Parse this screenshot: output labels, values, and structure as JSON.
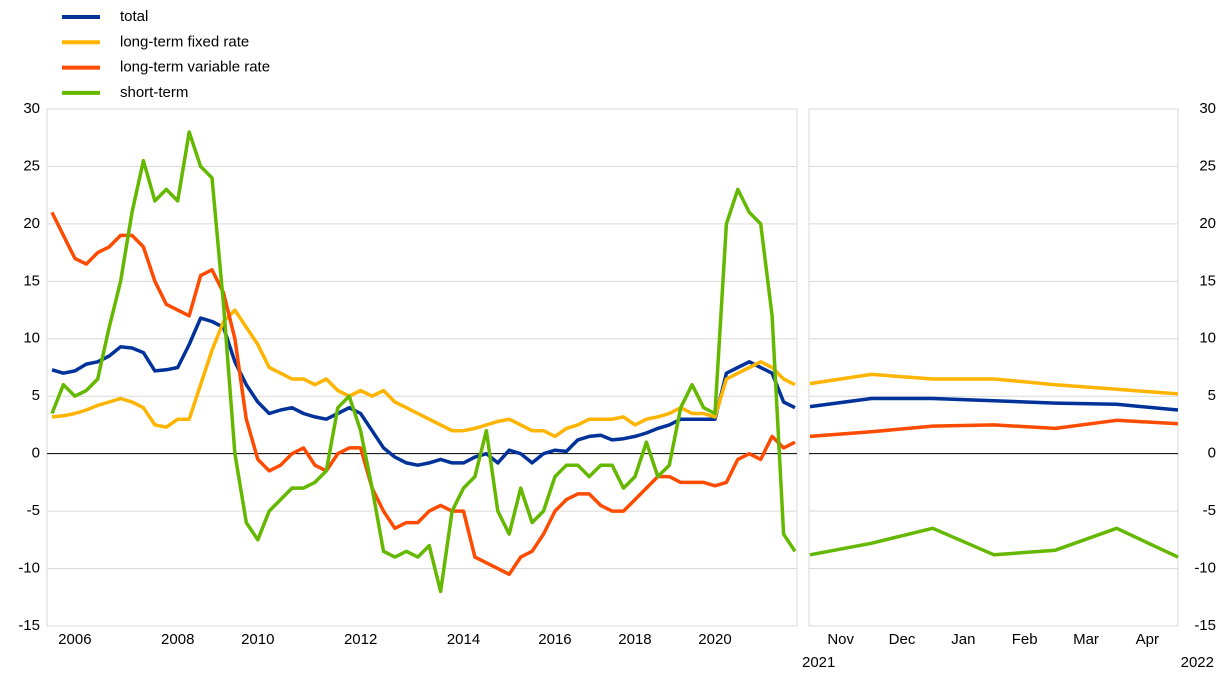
{
  "chart_data": [
    {
      "type": "line",
      "yaxis_position": "left",
      "grid": true,
      "categories": [
        null,
        null,
        "2006",
        null,
        null,
        null,
        null,
        null,
        null,
        null,
        null,
        "2008",
        null,
        null,
        null,
        null,
        null,
        null,
        "2010",
        null,
        null,
        null,
        null,
        null,
        null,
        null,
        null,
        "2012",
        null,
        null,
        null,
        null,
        null,
        null,
        null,
        null,
        "2014",
        null,
        null,
        null,
        null,
        null,
        null,
        null,
        "2016",
        null,
        null,
        null,
        null,
        null,
        null,
        "2018",
        null,
        null,
        null,
        null,
        null,
        null,
        "2020",
        null,
        null,
        null,
        null,
        null,
        null,
        null
      ],
      "ylim": [
        -15,
        30
      ],
      "yticks": [
        -15,
        -10,
        -5,
        0,
        5,
        10,
        15,
        20,
        25,
        30
      ],
      "series": [
        {
          "name": "total",
          "color": "#003299",
          "values": [
            7.3,
            7.0,
            7.2,
            7.8,
            8.0,
            8.5,
            9.3,
            9.2,
            8.8,
            7.2,
            7.3,
            7.5,
            9.5,
            11.8,
            11.5,
            11.0,
            8.0,
            6.0,
            4.5,
            3.5,
            3.8,
            4.0,
            3.5,
            3.2,
            3.0,
            3.5,
            4.0,
            3.5,
            2.0,
            0.5,
            -0.3,
            -0.8,
            -1.0,
            -0.8,
            -0.5,
            -0.8,
            -0.8,
            -0.3,
            0.0,
            -0.8,
            0.3,
            0.0,
            -0.8,
            0.0,
            0.3,
            0.2,
            1.2,
            1.5,
            1.6,
            1.2,
            1.3,
            1.5,
            1.8,
            2.2,
            2.5,
            3.0,
            3.0,
            3.0,
            3.0,
            7.0,
            7.5,
            8.0,
            7.5,
            7.0,
            4.5,
            4.0
          ]
        },
        {
          "name": "long-term fixed rate",
          "color": "#ffb400",
          "values": [
            3.2,
            3.3,
            3.5,
            3.8,
            4.2,
            4.5,
            4.8,
            4.5,
            4.0,
            2.5,
            2.3,
            3.0,
            3.0,
            6.0,
            9.0,
            11.5,
            12.5,
            11.0,
            9.5,
            7.5,
            7.0,
            6.5,
            6.5,
            6.0,
            6.5,
            5.5,
            5.0,
            5.5,
            5.0,
            5.5,
            4.5,
            4.0,
            3.5,
            3.0,
            2.5,
            2.0,
            2.0,
            2.2,
            2.5,
            2.8,
            3.0,
            2.5,
            2.0,
            2.0,
            1.5,
            2.2,
            2.5,
            3.0,
            3.0,
            3.0,
            3.2,
            2.5,
            3.0,
            3.2,
            3.5,
            4.0,
            3.5,
            3.5,
            3.2,
            6.5,
            7.0,
            7.5,
            8.0,
            7.5,
            6.5,
            6.0
          ]
        },
        {
          "name": "long-term variable rate",
          "color": "#ff4b00",
          "values": [
            21,
            19,
            17,
            16.5,
            17.5,
            18,
            19,
            19,
            18,
            15,
            13,
            12.5,
            12,
            15.5,
            16,
            14,
            10,
            3,
            -0.5,
            -1.5,
            -1,
            0,
            0.5,
            -1,
            -1.5,
            0,
            0.5,
            0.5,
            -3,
            -5,
            -6.5,
            -6,
            -6,
            -5,
            -4.5,
            -5,
            -5,
            -9,
            -9.5,
            -10,
            -10.5,
            -9,
            -8.5,
            -7,
            -5,
            -4,
            -3.5,
            -3.5,
            -4.5,
            -5,
            -5,
            -4,
            -3,
            -2,
            -2,
            -2.5,
            -2.5,
            -2.5,
            -2.8,
            -2.5,
            -0.5,
            0,
            -0.5,
            1.5,
            0.5,
            1.0
          ]
        },
        {
          "name": "short-term",
          "color": "#65b800",
          "values": [
            3.5,
            6,
            5,
            5.5,
            6.5,
            11,
            15,
            21,
            25.5,
            22,
            23,
            22,
            28,
            25,
            24,
            13,
            0,
            -6,
            -7.5,
            -5,
            -4,
            -3,
            -3,
            -2.5,
            -1.5,
            4,
            5,
            2,
            -3,
            -8.5,
            -9,
            -8.5,
            -9,
            -8,
            -12,
            -5,
            -3,
            -2,
            2,
            -5,
            -7,
            -3,
            -6,
            -5,
            -2,
            -1,
            -1,
            -2,
            -1,
            -1,
            -3,
            -2,
            1,
            -2,
            -1,
            4,
            6,
            4,
            3.5,
            20,
            23,
            21,
            20,
            12,
            -7,
            -8.5
          ]
        }
      ]
    },
    {
      "type": "line",
      "yaxis_position": "right",
      "grid": true,
      "categories": [
        null,
        "Nov",
        "Dec",
        "Jan",
        "Feb",
        "Mar",
        "Apr"
      ],
      "year_labels": [
        "2021",
        "2022"
      ],
      "ylim": [
        -15,
        30
      ],
      "yticks": [
        -15,
        -10,
        -5,
        0,
        5,
        10,
        15,
        20,
        25,
        30
      ],
      "series": [
        {
          "color": "#003299",
          "values": [
            4.1,
            4.8,
            4.8,
            4.6,
            4.4,
            4.3,
            3.8
          ]
        },
        {
          "color": "#ffb400",
          "values": [
            6.1,
            6.9,
            6.5,
            6.5,
            6.0,
            5.6,
            5.2
          ]
        },
        {
          "color": "#ff4b00",
          "values": [
            1.5,
            1.9,
            2.4,
            2.5,
            2.2,
            2.9,
            2.6
          ]
        },
        {
          "color": "#65b800",
          "values": [
            -8.8,
            -7.8,
            -6.5,
            -8.8,
            -8.4,
            -6.5,
            -9.0
          ]
        }
      ]
    }
  ]
}
